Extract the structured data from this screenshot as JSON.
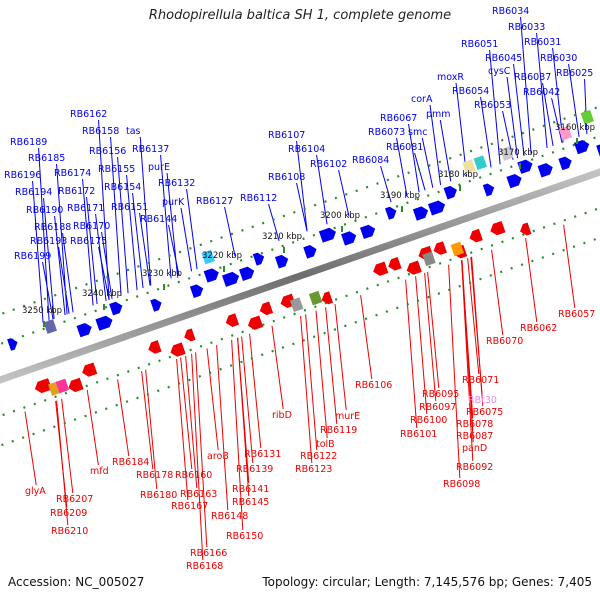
{
  "title": "Rhodopirellula baltica SH 1, complete genome",
  "footer": {
    "accession": "Accession: NC_005027",
    "summary": "Topology: circular; Length: 7,145,576 bp; Genes: 7,405"
  },
  "colors": {
    "forward": "#0000ee",
    "reverse": "#ee0000",
    "tick": "#2e8b2e",
    "backbone": "#808080",
    "pseudo_label": "#ee88ee"
  },
  "ticks": [
    "3160 kbp",
    "3170 kbp",
    "3180 kbp",
    "3190 kbp",
    "3200 kbp",
    "3210 kbp",
    "3220 kbp",
    "3230 kbp",
    "3240 kbp",
    "3250 kbp"
  ],
  "top_labels": [
    "RB6034",
    "RB6033",
    "RB6031",
    "RB6030",
    "RB6025",
    "RB6051",
    "RB6045",
    "cysC",
    "RB6037",
    "RB6042",
    "moxR",
    "RB6054",
    "RB6053",
    "corA",
    "pmm",
    "RB6067",
    "RB6073",
    "smc",
    "RB6081",
    "RB6084",
    "RB6107",
    "RB6104",
    "RB6102",
    "RB6108",
    "RB6112",
    "RB6127",
    "RB6162",
    "RB6158",
    "tas",
    "RB6156",
    "RB6137",
    "RB6155",
    "purE",
    "RB6154",
    "RB6132",
    "RB6151",
    "purK",
    "RB6144",
    "RB6189",
    "RB6185",
    "RB6196",
    "RB6174",
    "RB6194",
    "RB6172",
    "RB6190",
    "RB6171",
    "RB6188",
    "RB6170",
    "RB6193",
    "RB6175",
    "RB6199"
  ],
  "bottom_labels": [
    "RB6057",
    "RB6062",
    "RB6070",
    "RB6071",
    "RB6095",
    "RBt30",
    "RB6097",
    "RB6075",
    "RB6100",
    "RB6078",
    "RB6101",
    "RB6087",
    "panD",
    "RB6092",
    "RB6098",
    "RB6106",
    "murE",
    "RB6119",
    "tolB",
    "ribD",
    "RB6122",
    "RB6123",
    "RB6131",
    "aroB",
    "RB6139",
    "RB6160",
    "RB6141",
    "RB6145",
    "RB6163",
    "RB6148",
    "RB6167",
    "RB6150",
    "RB6184",
    "RB6178",
    "RB6180",
    "RB6166",
    "RB6168",
    "mfd",
    "glyA",
    "RB6207",
    "RB6209",
    "RB6210"
  ]
}
